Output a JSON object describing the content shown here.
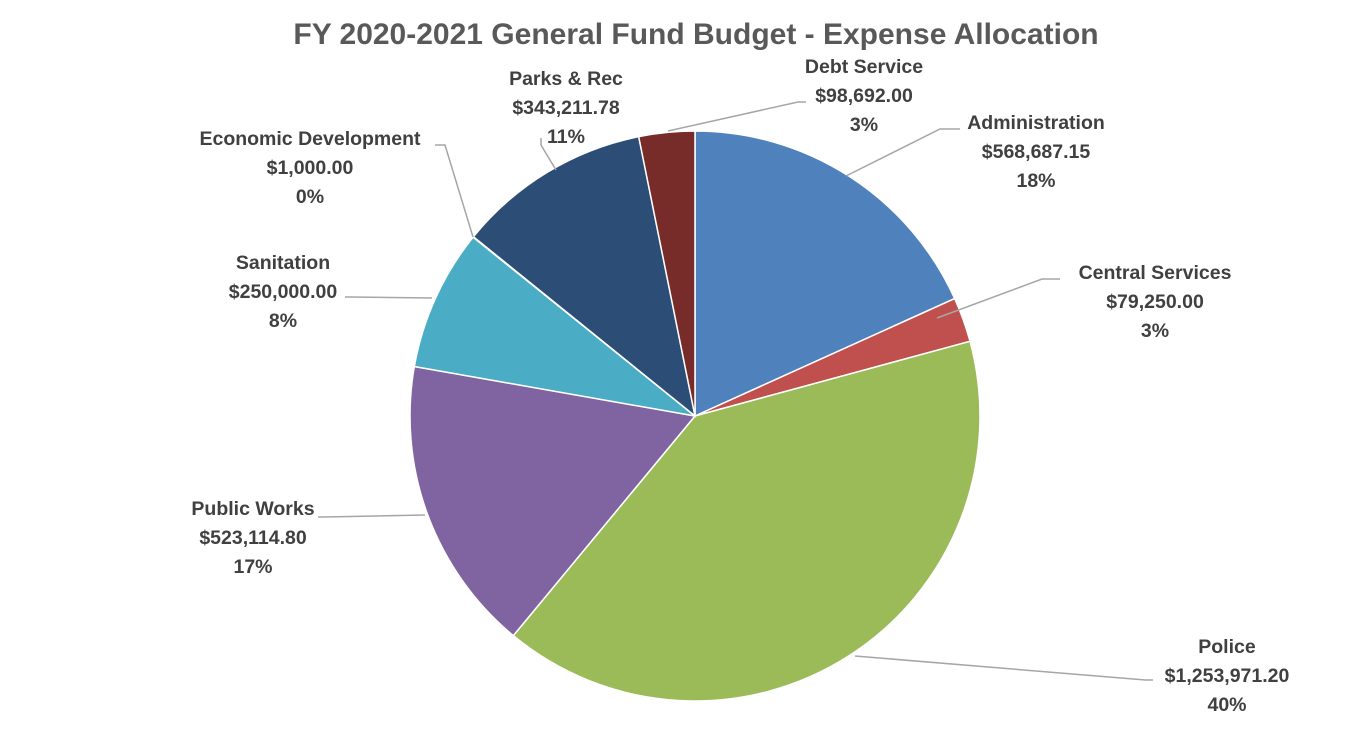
{
  "chart_data": {
    "type": "pie",
    "title": "FY 2020-2021 General Fund Budget - Expense Allocation",
    "start_angle_deg": 0,
    "direction": "clockwise",
    "slices": [
      {
        "name": "Administration",
        "value": 568687.15,
        "value_label": "$568,687.15",
        "percent_label": "18%",
        "color": "#4f81bd"
      },
      {
        "name": "Central Services",
        "value": 79250.0,
        "value_label": "$79,250.00",
        "percent_label": "3%",
        "color": "#c0504d"
      },
      {
        "name": "Police",
        "value": 1253971.2,
        "value_label": "$1,253,971.20",
        "percent_label": "40%",
        "color": "#9bbb59"
      },
      {
        "name": "Public Works",
        "value": 523114.8,
        "value_label": "$523,114.80",
        "percent_label": "17%",
        "color": "#8064a2"
      },
      {
        "name": "Sanitation",
        "value": 250000.0,
        "value_label": "$250,000.00",
        "percent_label": "8%",
        "color": "#4bacc6"
      },
      {
        "name": "Economic Development",
        "value": 1000.0,
        "value_label": "$1,000.00",
        "percent_label": "0%",
        "color": "#f79646"
      },
      {
        "name": "Parks & Rec",
        "value": 343211.78,
        "value_label": "$343,211.78",
        "percent_label": "11%",
        "color": "#2c4d75"
      },
      {
        "name": "Debt Service",
        "value": 98692.0,
        "value_label": "$98,692.00",
        "percent_label": "3%",
        "color": "#772c2a"
      }
    ]
  }
}
